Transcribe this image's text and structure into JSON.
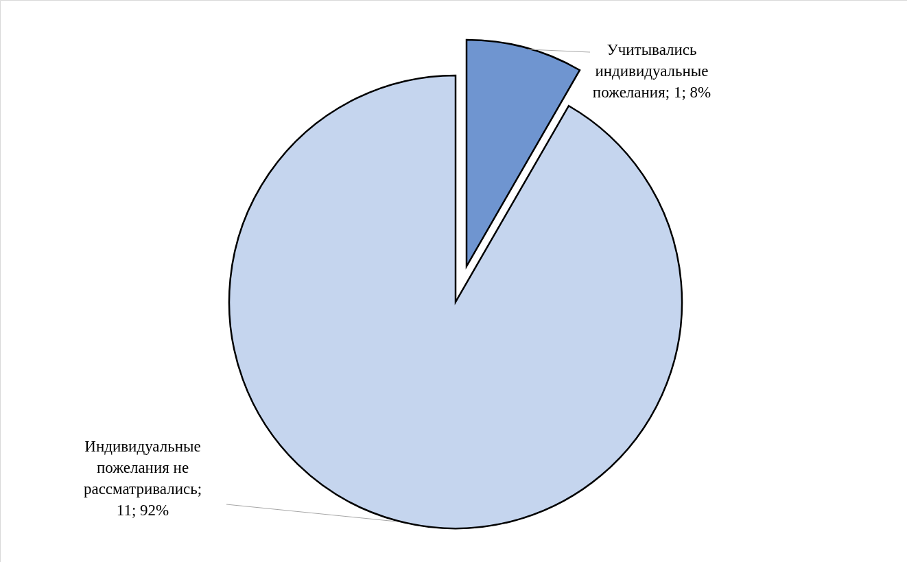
{
  "chart_data": {
    "type": "pie",
    "categories": [
      "Учитывались индивидуальные пожелания; 1; 8%",
      "Индивидуальные пожелания не рассматривались; 11; 92%"
    ],
    "values": [
      1,
      11
    ],
    "colors": [
      "#6f95d0",
      "#c5d5ee"
    ]
  }
}
